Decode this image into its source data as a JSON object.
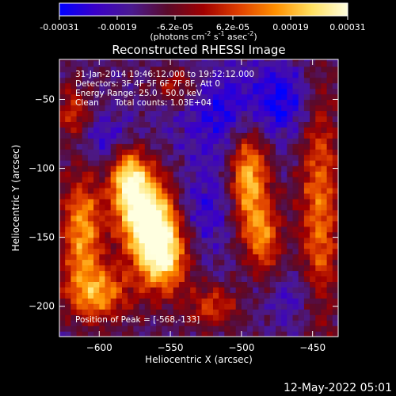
{
  "colorbar": {
    "tick_labels": [
      "-0.00031",
      "-0.00019",
      "-6.2e-05",
      "6.2e-05",
      "0.00019",
      "0.00031"
    ],
    "unit_label_parts": [
      "(photons cm",
      "-2",
      " s",
      "-1",
      " asec",
      "-2",
      ")"
    ],
    "min": -0.00031,
    "max": 0.00031,
    "palette": [
      "#0000ff",
      "#3a00c8",
      "#4a1a90",
      "#5a0a2a",
      "#a00000",
      "#e04000",
      "#ff9000",
      "#ffe060",
      "#ffffe0"
    ]
  },
  "chart_data": {
    "type": "heatmap",
    "title": "Reconstructed RHESSI Image",
    "xlabel": "Heliocentric X (arcsec)",
    "ylabel": "Heliocentric Y (arcsec)",
    "xlim": [
      -628,
      -432
    ],
    "ylim": [
      -222,
      -21
    ],
    "x_ticks": [
      -600,
      -550,
      -500,
      -450
    ],
    "y_ticks": [
      -50,
      -100,
      -150,
      -200
    ],
    "x_tick_labels": [
      "−600",
      "−550",
      "−500",
      "−450"
    ],
    "y_tick_labels": [
      "−50",
      "−100",
      "−150",
      "−200"
    ],
    "peak": [
      -568,
      -133
    ],
    "hot_regions": [
      {
        "x": -568,
        "y": -133,
        "sx": 14,
        "sy": 22,
        "amp": 1.0
      },
      {
        "x": -555,
        "y": -162,
        "sx": 12,
        "sy": 20,
        "amp": 0.9
      },
      {
        "x": -580,
        "y": -105,
        "sx": 9,
        "sy": 15,
        "amp": 0.7
      },
      {
        "x": -612,
        "y": -145,
        "sx": 10,
        "sy": 30,
        "amp": 0.65
      },
      {
        "x": -600,
        "y": -190,
        "sx": 16,
        "sy": 14,
        "amp": 0.6
      },
      {
        "x": -495,
        "y": -105,
        "sx": 10,
        "sy": 26,
        "amp": 0.8
      },
      {
        "x": -485,
        "y": -150,
        "sx": 9,
        "sy": 18,
        "amp": 0.55
      },
      {
        "x": -445,
        "y": -130,
        "sx": 10,
        "sy": 60,
        "amp": 0.55
      },
      {
        "x": -520,
        "y": -200,
        "sx": 12,
        "sy": 10,
        "amp": 0.45
      },
      {
        "x": -545,
        "y": -40,
        "sx": 12,
        "sy": 10,
        "amp": 0.35
      },
      {
        "x": -618,
        "y": -60,
        "sx": 8,
        "sy": 14,
        "amp": 0.4
      }
    ],
    "cold_regions": [
      {
        "x": -510,
        "y": -60,
        "sx": 25,
        "sy": 25,
        "amp": 0.8
      },
      {
        "x": -470,
        "y": -50,
        "sx": 14,
        "sy": 18,
        "amp": 0.7
      },
      {
        "x": -595,
        "y": -80,
        "sx": 14,
        "sy": 14,
        "amp": 0.6
      },
      {
        "x": -525,
        "y": -130,
        "sx": 18,
        "sy": 22,
        "amp": 0.6
      },
      {
        "x": -460,
        "y": -195,
        "sx": 14,
        "sy": 14,
        "amp": 0.5
      }
    ]
  },
  "annotations": {
    "time_range": "31-Jan-2014 19:46:12.000 to 19:52:12.000",
    "detectors": "Detectors: 3F 4F 5F 6F 7F 8F, Att 0",
    "energy": "Energy Range: 25.0 - 50.0 keV",
    "method": "Clean",
    "counts": "Total counts: 1.03E+04",
    "peak_label": "Position of Peak = [-568,-133]"
  },
  "footer": {
    "date": "12-May-2022 05:01"
  }
}
